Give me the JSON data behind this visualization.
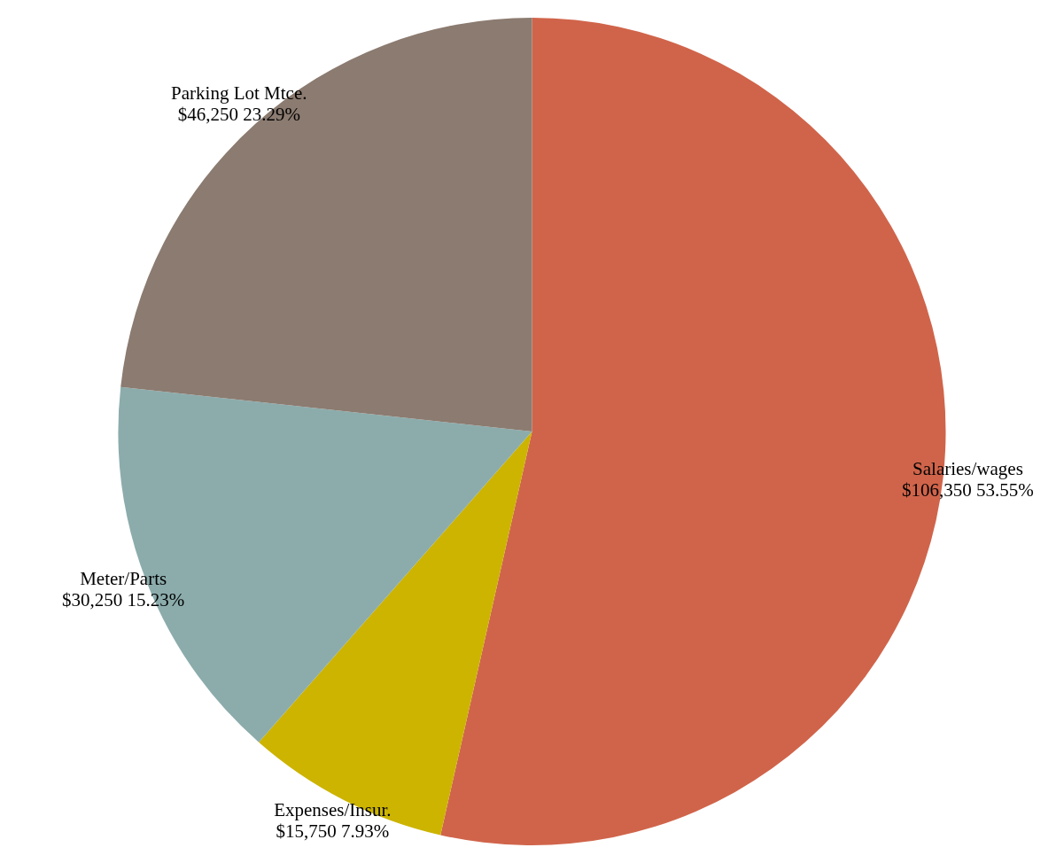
{
  "chart_data": {
    "type": "pie",
    "categories": [
      "Salaries/wages",
      "Expenses/Insur.",
      "Meter/Parts",
      "Parking Lot Mtce."
    ],
    "values": [
      106350,
      15750,
      30250,
      46250
    ],
    "value_labels": [
      "$106,350 53.55%",
      "$15,750 7.93%",
      "$30,250 15.23%",
      "$46,250 23.29%"
    ],
    "colors": [
      "#d0644a",
      "#ccb400",
      "#8cacac",
      "#8b7b70"
    ],
    "legend": false
  }
}
